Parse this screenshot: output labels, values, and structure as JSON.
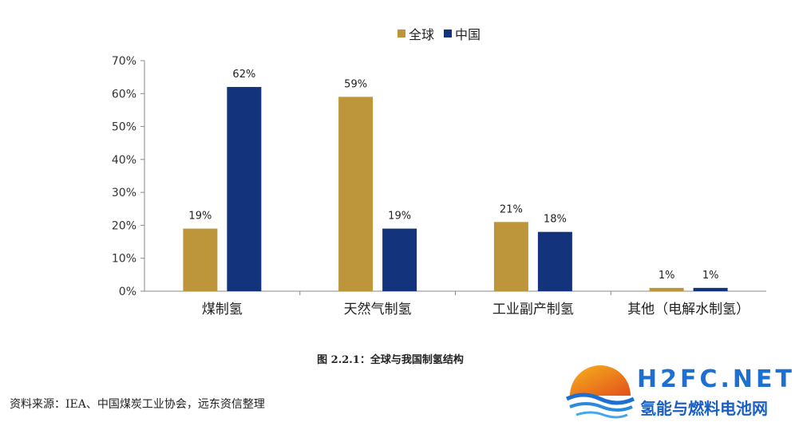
{
  "chart_data": {
    "type": "bar",
    "categories": [
      "煤制氢",
      "天然气制氢",
      "工业副产制氢",
      "其他（电解水制氢）"
    ],
    "series": [
      {
        "name": "全球",
        "values": [
          19,
          59,
          21,
          1
        ],
        "color": "#bd963b"
      },
      {
        "name": "中国",
        "values": [
          62,
          19,
          18,
          1
        ],
        "color": "#14337d"
      }
    ],
    "ylim": [
      0,
      70
    ],
    "yticks": [
      "0%",
      "10%",
      "20%",
      "30%",
      "40%",
      "50%",
      "60%",
      "70%"
    ],
    "value_suffix": "%",
    "legend_position": "top",
    "grid": false
  },
  "caption": "图 2.2.1：全球与我国制氢结构",
  "source": "资料来源：IEA、中国煤炭工业协会，远东资信整理",
  "logo": {
    "title": "H2FC.NET",
    "subtitle": "氢能与燃料电池网"
  }
}
